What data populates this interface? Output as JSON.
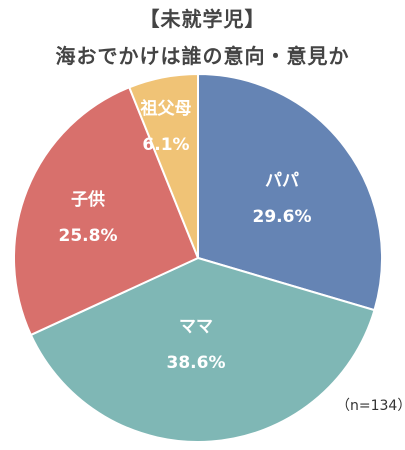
{
  "chart_data": {
    "type": "pie",
    "title": "【未就学児】",
    "subtitle": "海おでかけは誰の意向・意見か",
    "slices": [
      {
        "label": "パパ",
        "value": 29.6,
        "percent_label": "29.6%",
        "color": "#6584b4"
      },
      {
        "label": "ママ",
        "value": 38.6,
        "percent_label": "38.6%",
        "color": "#7fb7b5"
      },
      {
        "label": "子供",
        "value": 25.8,
        "percent_label": "25.8%",
        "color": "#d8706c"
      },
      {
        "label": "祖父母",
        "value": 6.1,
        "percent_label": "6.1%",
        "color": "#f0c376"
      }
    ],
    "start_angle_deg": 0,
    "direction": "clockwise",
    "note": "（n=134）"
  }
}
